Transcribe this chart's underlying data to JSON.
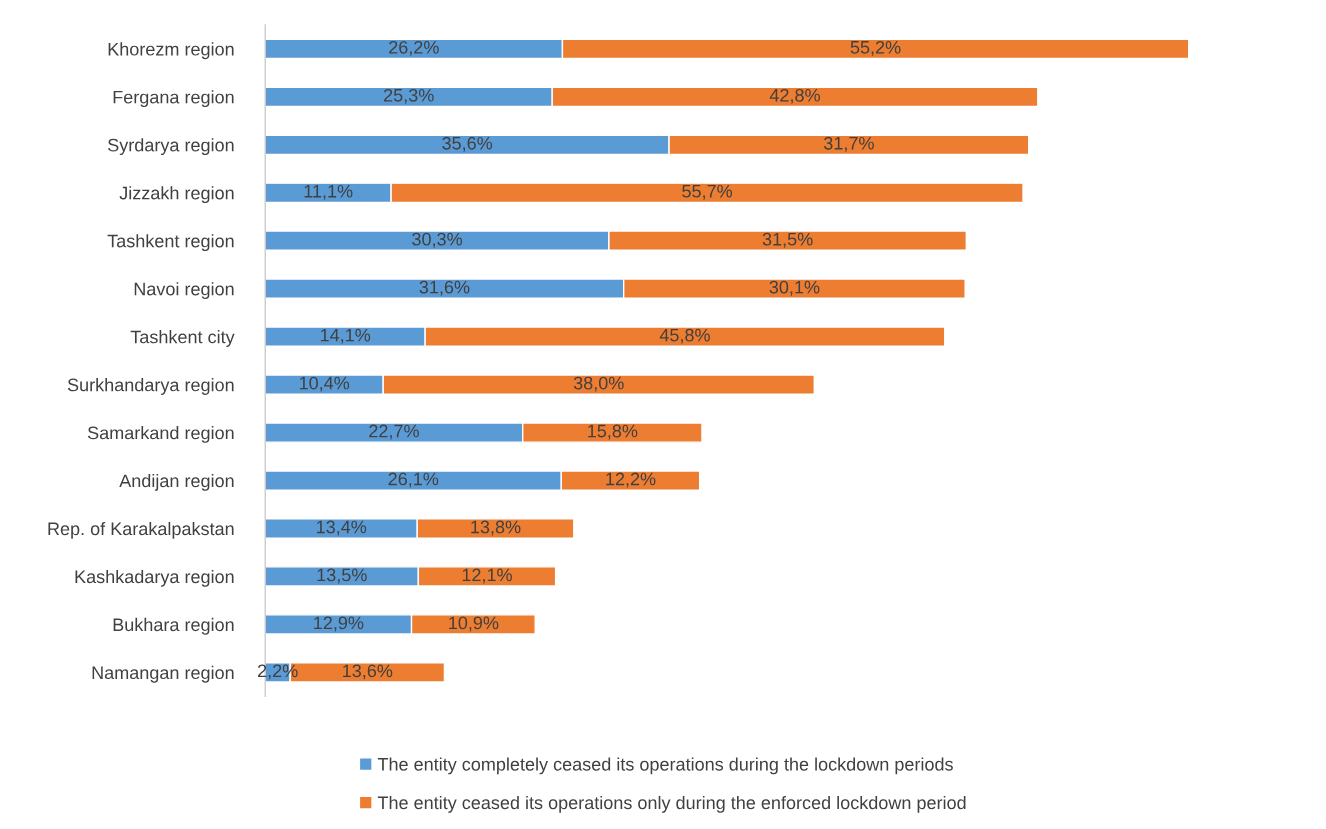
{
  "chart_data": {
    "type": "bar",
    "orientation": "horizontal",
    "stacked": true,
    "categories": [
      "Khorezm region",
      "Fergana region",
      "Syrdarya region",
      "Jizzakh region",
      "Tashkent region",
      "Navoi region",
      "Tashkent city",
      "Surkhandarya region",
      "Samarkand region",
      "Andijan region",
      "Rep. of Karakalpakstan",
      "Kashkadarya region",
      "Bukhara region",
      "Namangan region"
    ],
    "series": [
      {
        "name": "The entity completely ceased its operations during the lockdown periods",
        "color": "#5b9bd5",
        "values": [
          26.2,
          25.3,
          35.6,
          11.1,
          30.3,
          31.6,
          14.1,
          10.4,
          22.7,
          26.1,
          13.4,
          13.5,
          12.9,
          2.2
        ],
        "value_labels": [
          "26,2%",
          "25,3%",
          "35,6%",
          "11,1%",
          "30,3%",
          "31,6%",
          "14,1%",
          "10,4%",
          "22,7%",
          "26,1%",
          "13,4%",
          "13,5%",
          "12,9%",
          "2,2%"
        ]
      },
      {
        "name": "The entity ceased its operations only during the enforced lockdown period",
        "color": "#ed7d31",
        "values": [
          55.2,
          42.8,
          31.7,
          55.7,
          31.5,
          30.1,
          45.8,
          38.0,
          15.8,
          12.2,
          13.8,
          12.1,
          10.9,
          13.6
        ],
        "value_labels": [
          "55,2%",
          "42,8%",
          "31,7%",
          "55,7%",
          "31,5%",
          "30,1%",
          "45,8%",
          "38,0%",
          "15,8%",
          "12,2%",
          "13,8%",
          "12,1%",
          "10,9%",
          "13,6%"
        ]
      }
    ],
    "grid": false,
    "legend": "bottom"
  }
}
